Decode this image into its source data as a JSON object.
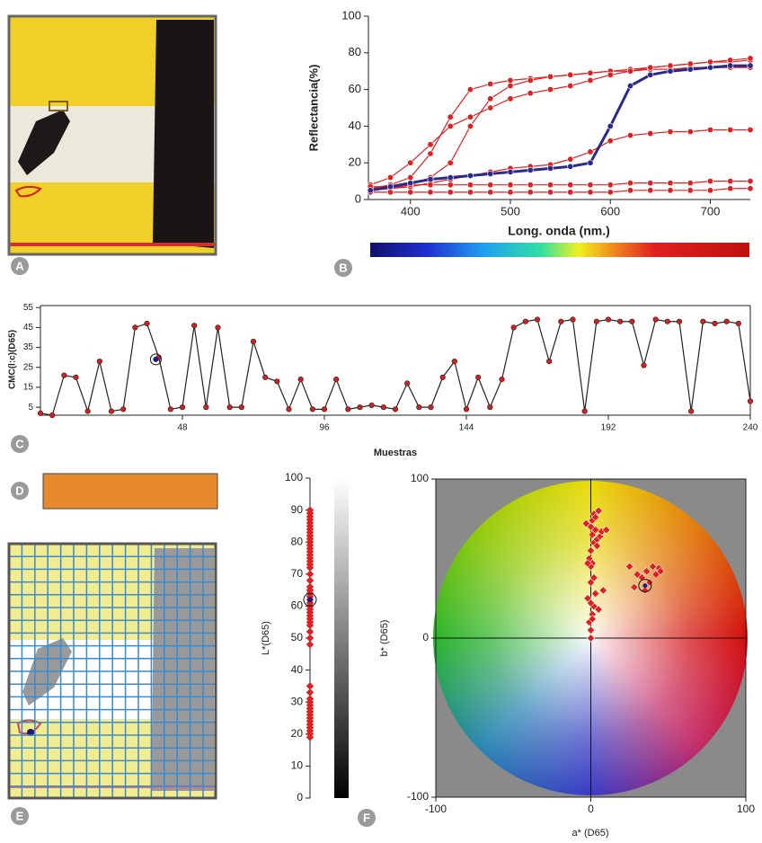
{
  "panel_labels": [
    "A",
    "B",
    "C",
    "D",
    "E",
    "F"
  ],
  "chart_data": [
    {
      "type": "line",
      "xlabel": "Long. onda (nm.)",
      "ylabel": "Reflectancia(%)",
      "x": [
        360,
        380,
        400,
        420,
        440,
        460,
        480,
        500,
        520,
        540,
        560,
        580,
        600,
        620,
        640,
        660,
        680,
        700,
        720,
        740
      ],
      "xlim": [
        358,
        740
      ],
      "xticks": [
        400,
        500,
        600,
        700
      ],
      "ylim": [
        0,
        100
      ],
      "yticks": [
        0,
        20,
        40,
        60,
        80,
        100
      ],
      "series": [
        {
          "color": "#e02020",
          "values": [
            6,
            8,
            12,
            25,
            45,
            60,
            63,
            65,
            66,
            67,
            68,
            69,
            70,
            70,
            71,
            71,
            72,
            72,
            72,
            72
          ]
        },
        {
          "color": "#e02020",
          "values": [
            5,
            6,
            8,
            12,
            20,
            40,
            55,
            62,
            65,
            67,
            68,
            69,
            70,
            71,
            72,
            73,
            74,
            75,
            75,
            76
          ]
        },
        {
          "color": "#e02020",
          "values": [
            8,
            12,
            20,
            30,
            40,
            45,
            50,
            55,
            58,
            60,
            62,
            65,
            68,
            70,
            72,
            73,
            74,
            75,
            76,
            77
          ]
        },
        {
          "color": "#e02020",
          "values": [
            5,
            6,
            7,
            9,
            11,
            13,
            15,
            17,
            18,
            19,
            22,
            26,
            32,
            35,
            36,
            37,
            37,
            38,
            38,
            38
          ]
        },
        {
          "color": "#e02020",
          "values": [
            4,
            4,
            4,
            4,
            4,
            4,
            4,
            4,
            4,
            4,
            4,
            4,
            4,
            5,
            5,
            5,
            5,
            5,
            6,
            6
          ]
        },
        {
          "color": "#e02020",
          "values": [
            7,
            7,
            8,
            8,
            8,
            8,
            8,
            8,
            8,
            8,
            8,
            8,
            8,
            9,
            9,
            9,
            9,
            10,
            10,
            10
          ]
        },
        {
          "color": "#2a2a8a",
          "values": [
            5,
            7,
            9,
            11,
            12,
            13,
            14,
            15,
            16,
            17,
            18,
            20,
            40,
            62,
            68,
            70,
            71,
            72,
            73,
            73
          ]
        }
      ]
    },
    {
      "type": "line",
      "xlabel": "Muestras",
      "ylabel": "CMC(l:c)(D65)",
      "x": [
        0,
        4,
        8,
        12,
        16,
        20,
        24,
        28,
        32,
        36,
        40,
        44,
        48,
        52,
        56,
        60,
        64,
        68,
        72,
        76,
        80,
        84,
        88,
        92,
        96,
        100,
        104,
        108,
        112,
        116,
        120,
        124,
        128,
        132,
        136,
        140,
        144,
        148,
        152,
        156,
        160,
        164,
        168,
        172,
        176,
        180,
        184,
        188,
        192,
        196,
        200,
        204,
        208,
        212,
        216,
        220,
        224,
        228,
        232,
        236,
        240
      ],
      "xlim": [
        0,
        240
      ],
      "xticks": [
        48,
        96,
        144,
        192,
        240
      ],
      "ylim": [
        1,
        56
      ],
      "yticks": [
        5,
        15,
        25,
        35,
        45,
        55
      ],
      "series": [
        {
          "color": "#222222",
          "values": [
            2,
            1,
            21,
            20,
            3,
            28,
            3,
            4,
            45,
            47,
            30,
            4,
            5,
            46,
            5,
            45,
            5,
            5,
            38,
            20,
            18,
            4,
            19,
            4,
            4,
            19,
            4,
            5,
            6,
            5,
            4,
            17,
            5,
            5,
            20,
            28,
            4,
            20,
            5,
            19,
            45,
            48,
            49,
            28,
            48,
            49,
            3,
            48,
            49,
            48,
            48,
            26,
            49,
            48,
            48,
            3,
            48,
            47,
            48,
            47,
            8
          ]
        }
      ],
      "selected": {
        "x": 39,
        "value": 29
      }
    },
    {
      "type": "strip",
      "ylabel": "L*(D65)",
      "ylim": [
        0,
        100
      ],
      "yticks": [
        0,
        10,
        20,
        30,
        40,
        50,
        60,
        70,
        80,
        90,
        100
      ],
      "values": [
        19,
        20,
        21,
        22,
        23,
        24,
        25,
        26,
        27,
        28,
        29,
        30,
        31,
        33,
        35,
        48,
        50,
        52,
        54,
        55,
        56,
        57,
        58,
        59,
        60,
        61,
        62,
        63,
        64,
        65,
        66,
        68,
        70,
        72,
        73,
        74,
        75,
        76,
        77,
        78,
        79,
        80,
        81,
        82,
        83,
        84,
        85,
        86,
        87,
        88,
        89,
        90
      ],
      "selected": 62
    },
    {
      "type": "scatter",
      "xlabel": "a* (D65)",
      "ylabel": "b* (D65)",
      "xlim": [
        -100,
        100
      ],
      "xticks": [
        -100,
        0,
        100
      ],
      "ylim": [
        -100,
        100
      ],
      "yticks": [
        -100,
        0,
        100
      ],
      "x": [
        0,
        0,
        -1,
        1,
        2,
        0,
        -2,
        3,
        5,
        8,
        1,
        -1,
        0,
        2,
        4,
        6,
        3,
        0,
        -3,
        1,
        2,
        5,
        3,
        0,
        -2,
        1,
        4,
        7,
        10,
        0,
        2,
        1,
        25,
        30,
        33,
        36,
        38,
        40,
        42,
        44,
        45,
        35,
        28
      ],
      "values": [
        0,
        5,
        10,
        15,
        20,
        22,
        25,
        28,
        18,
        30,
        47,
        50,
        55,
        60,
        62,
        64,
        68,
        70,
        72,
        74,
        78,
        80,
        76,
        45,
        47,
        65,
        58,
        67,
        68,
        35,
        38,
        12,
        45,
        40,
        38,
        42,
        35,
        45,
        40,
        44,
        42,
        30,
        32
      ],
      "selected": {
        "x": 35,
        "value": 33
      }
    }
  ]
}
